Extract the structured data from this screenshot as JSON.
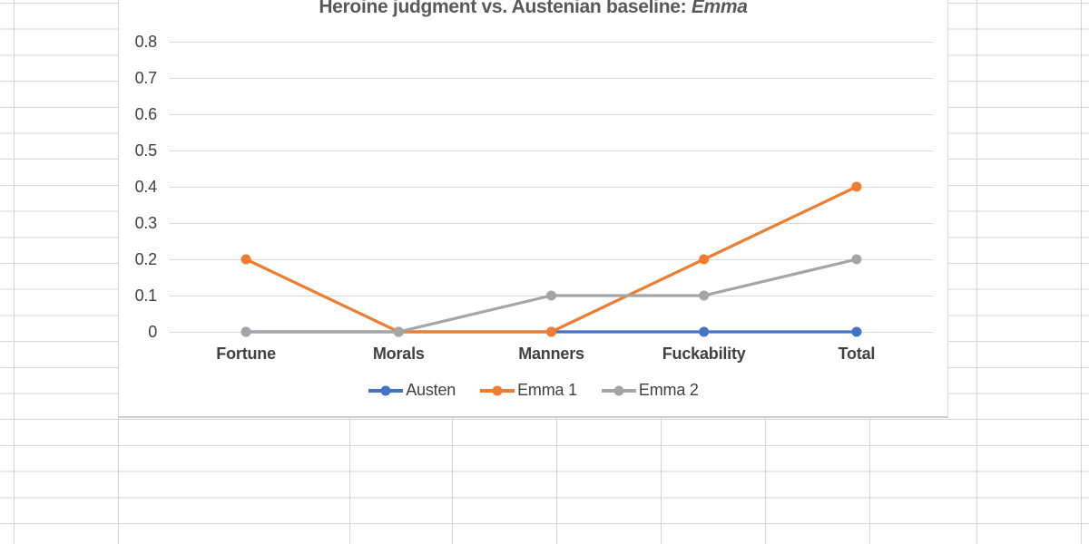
{
  "chart": {
    "title_main": "Heroine judgment vs. Austenian baseline: ",
    "title_emphasis": "Emma"
  },
  "chart_data": {
    "type": "line",
    "title": "Heroine judgment vs. Austenian baseline: Emma",
    "categories": [
      "Fortune",
      "Morals",
      "Manners",
      "Fuckability",
      "Total"
    ],
    "series": [
      {
        "name": "Austen",
        "color": "#4472C4",
        "values": [
          0,
          0,
          0,
          0,
          0
        ]
      },
      {
        "name": "Emma 1",
        "color": "#ED7D31",
        "values": [
          0.2,
          0,
          0,
          0.2,
          0.4
        ]
      },
      {
        "name": "Emma 2",
        "color": "#A5A5A5",
        "values": [
          0,
          0,
          0.1,
          0.1,
          0.2
        ]
      }
    ],
    "y_ticks": [
      0,
      0.1,
      0.2,
      0.3,
      0.4,
      0.5,
      0.6,
      0.7,
      0.8
    ],
    "ylim": [
      0,
      0.8
    ],
    "xlabel": "",
    "ylabel": "",
    "grid": true,
    "gridline_color": "#D9D9D9",
    "legend_position": "bottom"
  }
}
